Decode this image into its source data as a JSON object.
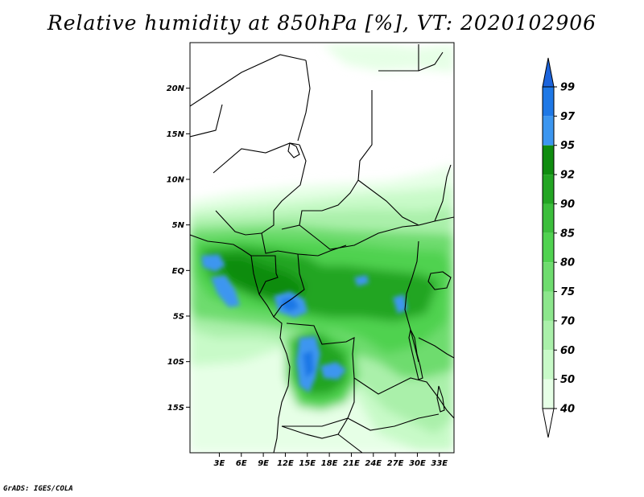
{
  "title": "Relative humidity at 850hPa [%], VT: 2020102906",
  "credit": "GrADS: IGES/COLA",
  "map": {
    "lon_range": [
      -1,
      35
    ],
    "lat_range": [
      -20,
      25
    ],
    "lon_ticks": [
      "3E",
      "6E",
      "9E",
      "12E",
      "15E",
      "18E",
      "21E",
      "24E",
      "27E",
      "30E",
      "33E"
    ],
    "lat_ticks": [
      "20N",
      "15N",
      "10N",
      "5N",
      "EQ",
      "5S",
      "10S",
      "15S"
    ]
  },
  "colorbar": {
    "levels": [
      "99",
      "97",
      "95",
      "92",
      "90",
      "85",
      "80",
      "75",
      "70",
      "60",
      "50",
      "40"
    ],
    "colors": [
      "#1c64dc",
      "#1e78e6",
      "#3c96f0",
      "#0f8c0f",
      "#23a523",
      "#3cbe3c",
      "#50d250",
      "#6edc6e",
      "#8ce68c",
      "#aaf0aa",
      "#c8fac8",
      "#e6ffe6"
    ]
  }
}
